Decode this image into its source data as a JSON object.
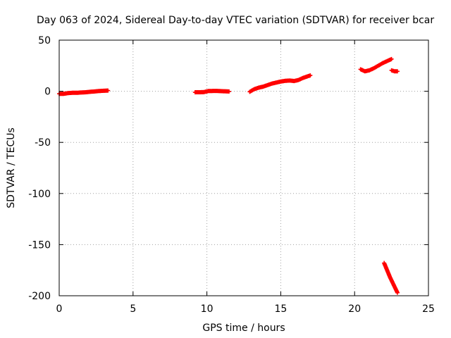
{
  "chart_data": {
    "type": "scatter",
    "title": "Day 063 of 2024, Sidereal Day-to-day VTEC variation (SDTVAR) for receiver bcar",
    "xlabel": "GPS time / hours",
    "ylabel": "SDTVAR / TECUs",
    "xlim": [
      0,
      25
    ],
    "ylim": [
      -200,
      50
    ],
    "xticks": [
      0,
      5,
      10,
      15,
      20,
      25
    ],
    "yticks": [
      50,
      0,
      -50,
      -100,
      -150,
      -200
    ],
    "xtick_labels": [
      "0",
      "5",
      "10",
      "15",
      "20",
      "25"
    ],
    "ytick_labels": [
      "50",
      "0",
      "-50",
      "-100",
      "-150",
      "-200"
    ],
    "grid": true,
    "marker": "plus",
    "color": "#ff0000",
    "series": [
      {
        "segments": [
          {
            "x": [
              0.0,
              0.3,
              0.6,
              0.9,
              1.2,
              1.5,
              1.8,
              2.1,
              2.4,
              2.7,
              3.0,
              3.3
            ],
            "y": [
              -2.5,
              -2.5,
              -1.8,
              -1.5,
              -1.5,
              -1.2,
              -1.0,
              -0.5,
              -0.2,
              0.2,
              0.5,
              0.7
            ]
          },
          {
            "x": [
              9.2,
              9.5,
              9.8,
              10.1,
              10.4,
              10.7,
              11.0,
              11.3,
              11.5
            ],
            "y": [
              -1.0,
              -1.0,
              -0.8,
              0.2,
              0.3,
              0.3,
              0.1,
              -0.1,
              -0.2
            ]
          },
          {
            "x": [
              12.9,
              13.2,
              13.5,
              13.8,
              14.1,
              14.4,
              14.7,
              15.0,
              15.3,
              15.6,
              15.9,
              16.2,
              16.5,
              16.8,
              17.0
            ],
            "y": [
              -0.5,
              2.0,
              3.5,
              4.5,
              6.0,
              7.5,
              8.5,
              9.5,
              10.2,
              10.5,
              10.0,
              11.0,
              13.0,
              14.5,
              15.5
            ]
          },
          {
            "x": [
              20.4,
              20.7,
              21.0,
              21.3,
              21.6,
              21.9,
              22.2,
              22.5
            ],
            "y": [
              21.5,
              19.5,
              20.5,
              22.5,
              25.0,
              27.5,
              29.5,
              31.5
            ]
          },
          {
            "x": [
              22.5,
              22.7,
              22.9
            ],
            "y": [
              20.5,
              19.5,
              19.5
            ]
          },
          {
            "x": [
              22.0,
              22.2,
              22.4,
              22.6,
              22.8,
              22.9
            ],
            "y": [
              -168,
              -175,
              -182,
              -188,
              -194,
              -197
            ]
          }
        ]
      }
    ]
  }
}
